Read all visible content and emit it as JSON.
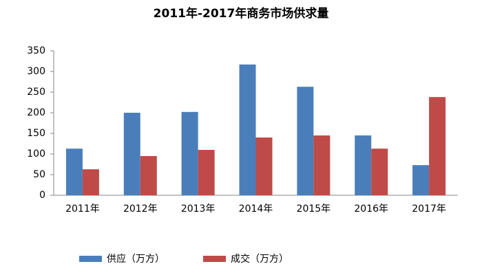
{
  "chart_data": {
    "type": "bar",
    "title": "2011年-2017年商务市场供求量",
    "categories": [
      "2011年",
      "2012年",
      "2013年",
      "2014年",
      "2015年",
      "2016年",
      "2017年"
    ],
    "series": [
      {
        "name": "供应（万方）",
        "color": "#4a7ebb",
        "values": [
          113,
          200,
          202,
          317,
          263,
          145,
          73
        ]
      },
      {
        "name": "成交（万方）",
        "color": "#be4b48",
        "values": [
          63,
          95,
          110,
          140,
          145,
          113,
          238
        ]
      }
    ],
    "ylim": [
      0,
      350
    ],
    "yticks": [
      0,
      50,
      100,
      150,
      200,
      250,
      300,
      350
    ],
    "grid": false,
    "legend": "bottom"
  }
}
